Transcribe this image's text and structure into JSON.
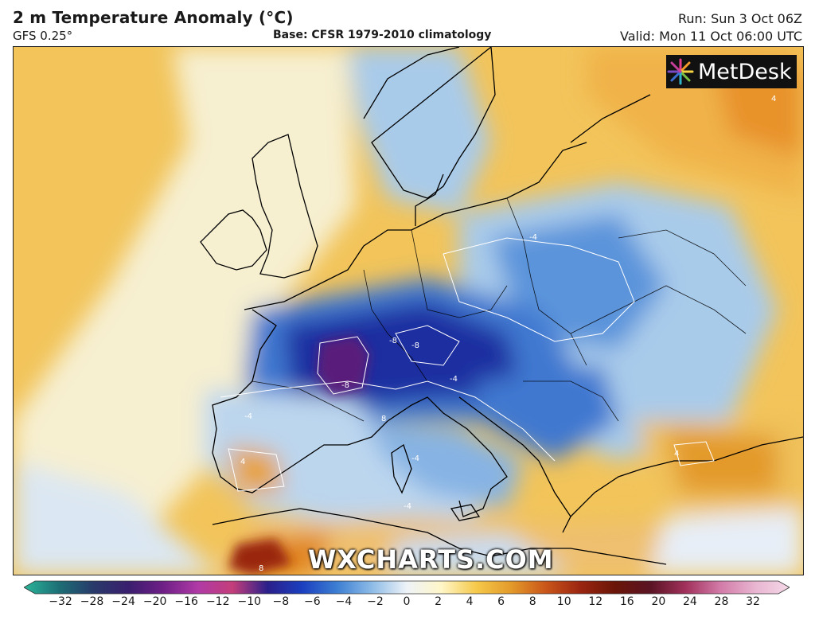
{
  "header": {
    "title": "2 m Temperature Anomaly (°C)",
    "model": "GFS 0.25°",
    "base": "Base: CFSR 1979-2010 climatology",
    "run": "Run: Sun 3 Oct 06Z",
    "valid": "Valid: Mon 11 Oct 06:00 UTC"
  },
  "logo": {
    "text": "MetDesk",
    "icon": "starburst-logo-icon"
  },
  "watermark": "WXCHARTS.COM",
  "contour_labels": [
    "-4",
    "-4",
    "-4",
    "-4",
    "-4",
    "-8",
    "-8",
    "-8",
    "4",
    "4",
    "4",
    "8",
    "8"
  ],
  "colorbar": {
    "ticks": [
      "−32",
      "−28",
      "−24",
      "−20",
      "−16",
      "−12",
      "−10",
      "−8",
      "−6",
      "−4",
      "−2",
      "0",
      "2",
      "4",
      "6",
      "8",
      "10",
      "12",
      "16",
      "20",
      "24",
      "28",
      "32"
    ],
    "colors": [
      "#2bb59a",
      "#1c6f75",
      "#283a6a",
      "#3a1e6e",
      "#6e1f86",
      "#b03aa6",
      "#c43e7a",
      "#2a1f8a",
      "#1b3fbf",
      "#3d7fd3",
      "#8dbbe6",
      "#eef3f8",
      "#fff6c8",
      "#f5c94a",
      "#e39a2a",
      "#c9551a",
      "#9a2510",
      "#6a1508",
      "#5a1424",
      "#a0305a",
      "#d27aa8",
      "#e8b5d0",
      "#f5d8e8"
    ]
  },
  "colors": {
    "warm": "#f2c45a",
    "neutral": "#f4f0d8",
    "cool": "#a9cbea",
    "cold": "#3f78d0",
    "very_cold": "#1f2fa0",
    "extreme_cold": "#5a1a7a",
    "hot": "#e0821e"
  }
}
